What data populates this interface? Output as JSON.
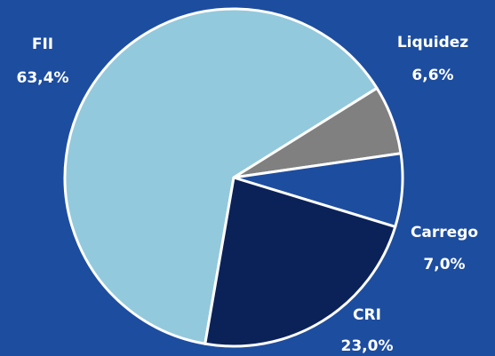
{
  "chart_data": {
    "type": "pie",
    "categories": [
      "FII",
      "Liquidez",
      "Carrego",
      "CRI"
    ],
    "values": [
      63.4,
      6.6,
      7.0,
      23.0
    ],
    "value_labels": [
      "63,4%",
      "6,6%",
      "7,0%",
      "23,0%"
    ],
    "colors": [
      "#93c9dc",
      "#808080",
      "#1d4d9f",
      "#0b2258"
    ]
  }
}
